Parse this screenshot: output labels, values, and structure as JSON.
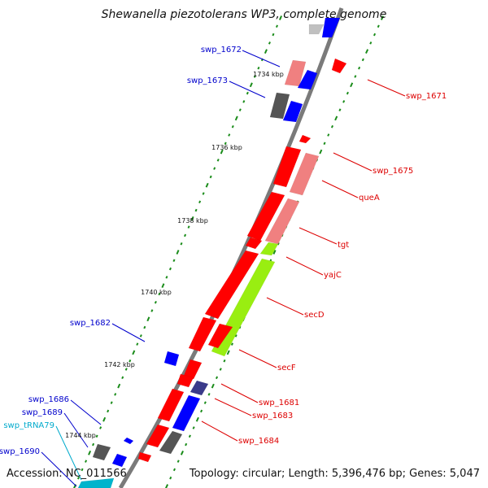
{
  "title": "Shewanella piezotolerans WP3, complete genome",
  "accession": "Accession: NC_011566",
  "topology": "Topology: circular; Length: 5,396,476 bp; Genes: 5,047",
  "colors": {
    "backbone": "#7a7a7a",
    "red": "#ff0000",
    "pink": "#f08080",
    "blue": "#0000ff",
    "gray": "#555555",
    "lightgray": "#c0c0c0",
    "green": "#99ee11",
    "navy": "#3a3a8a",
    "cyan": "#00b4cc",
    "ticks": "#1a8c1a",
    "label_red": "#dd0000",
    "label_blue": "#0000cc",
    "label_cyan": "#00aacc"
  },
  "kbp_labels": [
    "1734 kbp",
    "1736 kbp",
    "1738 kbp",
    "1740 kbp",
    "1742 kbp",
    "1744 kbp"
  ],
  "left_labels": [
    {
      "text": "swp_1672",
      "color": "blue"
    },
    {
      "text": "swp_1673",
      "color": "blue"
    },
    {
      "text": "swp_1682",
      "color": "blue"
    },
    {
      "text": "swp_1686",
      "color": "blue"
    },
    {
      "text": "swp_1689",
      "color": "blue"
    },
    {
      "text": "swp_tRNA79",
      "color": "cyan"
    },
    {
      "text": "swp_1690",
      "color": "blue"
    }
  ],
  "right_labels": [
    {
      "text": "swp_1671",
      "color": "red"
    },
    {
      "text": "swp_1675",
      "color": "red"
    },
    {
      "text": "queA",
      "color": "red"
    },
    {
      "text": "tgt",
      "color": "red"
    },
    {
      "text": "yajC",
      "color": "red"
    },
    {
      "text": "secD",
      "color": "red"
    },
    {
      "text": "secF",
      "color": "red"
    },
    {
      "text": "swp_1681",
      "color": "red"
    },
    {
      "text": "swp_1683",
      "color": "red"
    },
    {
      "text": "swp_1684",
      "color": "red"
    }
  ]
}
